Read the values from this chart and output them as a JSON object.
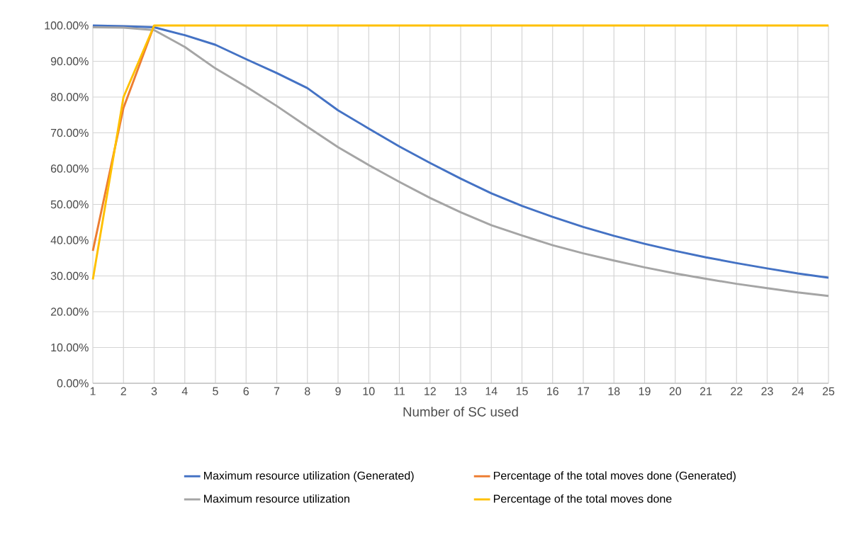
{
  "chart_data": {
    "type": "line",
    "xlabel": "Number of SC used",
    "x": [
      1,
      2,
      3,
      4,
      5,
      6,
      7,
      8,
      9,
      10,
      11,
      12,
      13,
      14,
      15,
      16,
      17,
      18,
      19,
      20,
      21,
      22,
      23,
      24,
      25
    ],
    "series": [
      {
        "name": "Maximum resource utilization (Generated)",
        "color": "#4472c4",
        "values": [
          100,
          99.8,
          99.5,
          97.3,
          94.6,
          90.6,
          86.7,
          82.5,
          76.3,
          71.2,
          66.2,
          61.6,
          57.2,
          53.1,
          49.6,
          46.5,
          43.7,
          41.2,
          39.0,
          37.0,
          35.2,
          33.6,
          32.1,
          30.7,
          29.5
        ]
      },
      {
        "name": "Percentage of the total moves done (Generated)",
        "color": "#ed7d31",
        "values": [
          37,
          77,
          100,
          null,
          null,
          null,
          null,
          null,
          null,
          null,
          null,
          null,
          null,
          null,
          null,
          null,
          null,
          null,
          null,
          null,
          null,
          null,
          null,
          null,
          null
        ]
      },
      {
        "name": "Maximum resource utilization",
        "color": "#a5a5a5",
        "values": [
          99.5,
          99.4,
          98.7,
          94.0,
          88.0,
          82.9,
          77.5,
          71.7,
          66.0,
          61.0,
          56.3,
          51.8,
          47.8,
          44.2,
          41.3,
          38.6,
          36.3,
          34.3,
          32.4,
          30.7,
          29.2,
          27.8,
          26.6,
          25.4,
          24.4
        ]
      },
      {
        "name": "Percentage of the total moves done",
        "color": "#ffc000",
        "values": [
          29,
          80,
          100,
          100,
          100,
          100,
          100,
          100,
          100,
          100,
          100,
          100,
          100,
          100,
          100,
          100,
          100,
          100,
          100,
          100,
          100,
          100,
          100,
          100,
          100
        ]
      }
    ],
    "xlim": [
      1,
      25
    ],
    "xticks": [
      1,
      2,
      3,
      4,
      5,
      6,
      7,
      8,
      9,
      10,
      11,
      12,
      13,
      14,
      15,
      16,
      17,
      18,
      19,
      20,
      21,
      22,
      23,
      24,
      25
    ],
    "ylim": [
      0,
      100
    ],
    "yticks": [
      {
        "value": 0,
        "label": "0.00%"
      },
      {
        "value": 10,
        "label": "10.00%"
      },
      {
        "value": 20,
        "label": "20.00%"
      },
      {
        "value": 30,
        "label": "30.00%"
      },
      {
        "value": 40,
        "label": "40.00%"
      },
      {
        "value": 50,
        "label": "50.00%"
      },
      {
        "value": 60,
        "label": "60.00%"
      },
      {
        "value": 70,
        "label": "70.00%"
      },
      {
        "value": 80,
        "label": "80.00%"
      },
      {
        "value": 90,
        "label": "90.00%"
      },
      {
        "value": 100,
        "label": "100.00%"
      }
    ],
    "grid": true,
    "legend": "bottom",
    "marker": "none",
    "line_style": "solid"
  }
}
